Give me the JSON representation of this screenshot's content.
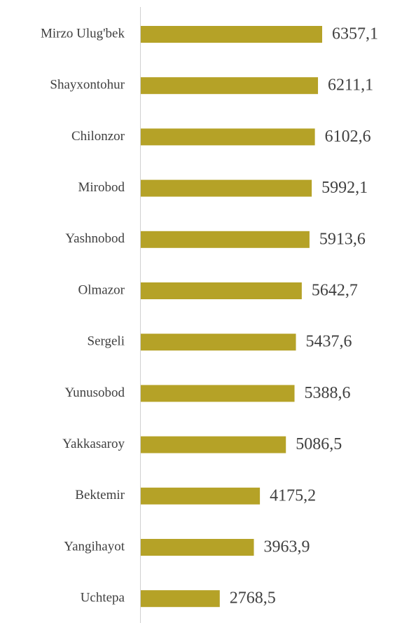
{
  "chart_data": {
    "type": "bar",
    "orientation": "horizontal",
    "categories": [
      "Mirzo Ulug'bek",
      "Shayxontohur",
      "Chilonzor",
      "Mirobod",
      "Yashnobod",
      "Olmazor",
      "Sergeli",
      "Yunusobod",
      "Yakkasaroy",
      "Bektemir",
      "Yangihayot",
      "Uchtepa"
    ],
    "values": [
      6357.1,
      6211.1,
      6102.6,
      5992.1,
      5913.6,
      5642.7,
      5437.6,
      5388.6,
      5086.5,
      4175.2,
      3963.9,
      2768.5
    ],
    "value_labels": [
      "6357,1",
      "6211,1",
      "6102,6",
      "5992,1",
      "5913,6",
      "5642,7",
      "5437,6",
      "5388,6",
      "5086,5",
      "4175,2",
      "3963,9",
      "2768,5"
    ],
    "color": "#b5a227"
  }
}
